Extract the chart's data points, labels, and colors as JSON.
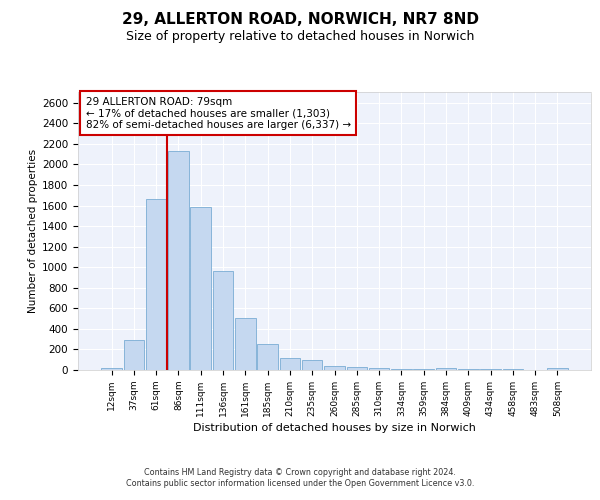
{
  "title_line1": "29, ALLERTON ROAD, NORWICH, NR7 8ND",
  "title_line2": "Size of property relative to detached houses in Norwich",
  "xlabel": "Distribution of detached houses by size in Norwich",
  "ylabel": "Number of detached properties",
  "bin_labels": [
    "12sqm",
    "37sqm",
    "61sqm",
    "86sqm",
    "111sqm",
    "136sqm",
    "161sqm",
    "185sqm",
    "210sqm",
    "235sqm",
    "260sqm",
    "285sqm",
    "310sqm",
    "334sqm",
    "359sqm",
    "384sqm",
    "409sqm",
    "434sqm",
    "458sqm",
    "483sqm",
    "508sqm"
  ],
  "bar_values": [
    15,
    295,
    1660,
    2130,
    1590,
    960,
    505,
    250,
    120,
    95,
    40,
    25,
    15,
    10,
    5,
    15,
    8,
    5,
    5,
    3,
    15
  ],
  "bar_color": "#c5d8f0",
  "bar_edge_color": "#7aadd4",
  "vline_color": "#cc0000",
  "vline_x_index": 3,
  "annotation_text": "29 ALLERTON ROAD: 79sqm\n← 17% of detached houses are smaller (1,303)\n82% of semi-detached houses are larger (6,337) →",
  "annotation_box_facecolor": "#ffffff",
  "annotation_box_edgecolor": "#cc0000",
  "ylim": [
    0,
    2700
  ],
  "yticks": [
    0,
    200,
    400,
    600,
    800,
    1000,
    1200,
    1400,
    1600,
    1800,
    2000,
    2200,
    2400,
    2600
  ],
  "background_color": "#eef2fb",
  "grid_color": "#ffffff",
  "footer_line1": "Contains HM Land Registry data © Crown copyright and database right 2024.",
  "footer_line2": "Contains public sector information licensed under the Open Government Licence v3.0."
}
